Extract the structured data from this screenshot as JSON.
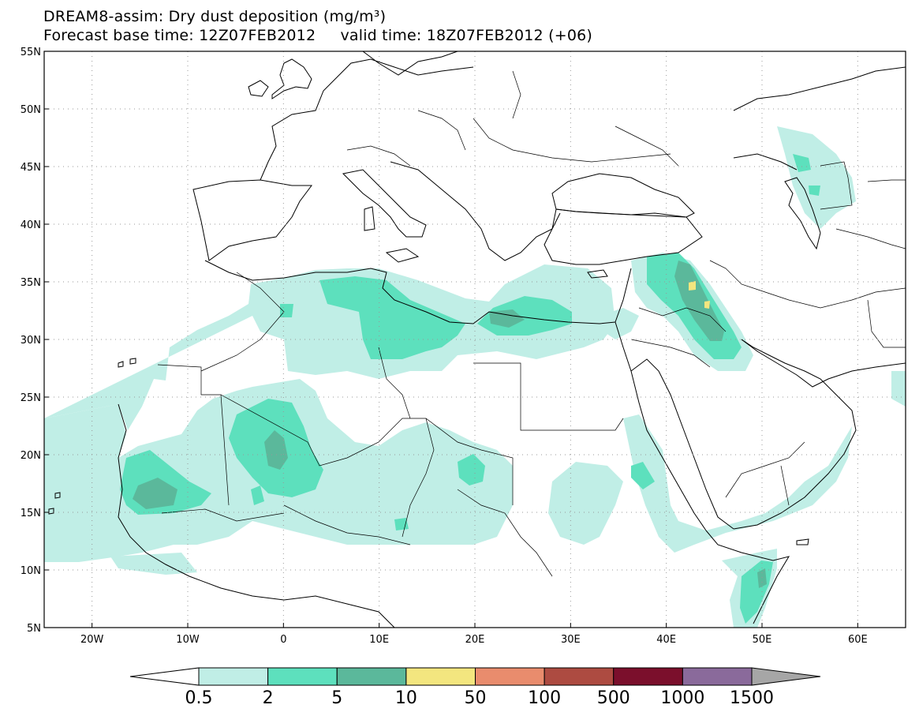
{
  "title": {
    "line1": "DREAM8-assim: Dry dust deposition (mg/m³)",
    "base_label": "Forecast base time: 12Z07FEB2012",
    "valid_label": "valid time: 18Z07FEB2012 (+06)"
  },
  "map": {
    "lon_range": [
      -25,
      65
    ],
    "lat_range": [
      5,
      55
    ],
    "lat_ticks": [
      {
        "value": 55,
        "label": "55N"
      },
      {
        "value": 50,
        "label": "50N"
      },
      {
        "value": 45,
        "label": "45N"
      },
      {
        "value": 40,
        "label": "40N"
      },
      {
        "value": 35,
        "label": "35N"
      },
      {
        "value": 30,
        "label": "30N"
      },
      {
        "value": 25,
        "label": "25N"
      },
      {
        "value": 20,
        "label": "20N"
      },
      {
        "value": 15,
        "label": "15N"
      },
      {
        "value": 10,
        "label": "10N"
      },
      {
        "value": 5,
        "label": "5N"
      }
    ],
    "lon_ticks": [
      {
        "value": -20,
        "label": "20W"
      },
      {
        "value": -10,
        "label": "10W"
      },
      {
        "value": 0,
        "label": "0"
      },
      {
        "value": 10,
        "label": "10E"
      },
      {
        "value": 20,
        "label": "20E"
      },
      {
        "value": 30,
        "label": "30E"
      },
      {
        "value": 40,
        "label": "40E"
      },
      {
        "value": 50,
        "label": "50E"
      },
      {
        "value": 60,
        "label": "60E"
      }
    ],
    "grid": "dotted"
  },
  "colorbar": {
    "colors": [
      "#ffffff",
      "#c0eee6",
      "#5de0bd",
      "#5bb89b",
      "#f3e67f",
      "#e98c6d",
      "#ad4b41",
      "#7b0f2c",
      "#8a6a9b",
      "#a6a6a6"
    ],
    "labels": [
      "0.5",
      "2",
      "5",
      "10",
      "50",
      "100",
      "500",
      "1000",
      "1500"
    ]
  },
  "dust_levels": [
    {
      "level": "0.5-2",
      "color": "#c0eee6"
    },
    {
      "level": "2-5",
      "color": "#5de0bd"
    },
    {
      "level": "5-10",
      "color": "#5bb89b"
    },
    {
      "level": "10-50",
      "color": "#f3e67f"
    }
  ]
}
